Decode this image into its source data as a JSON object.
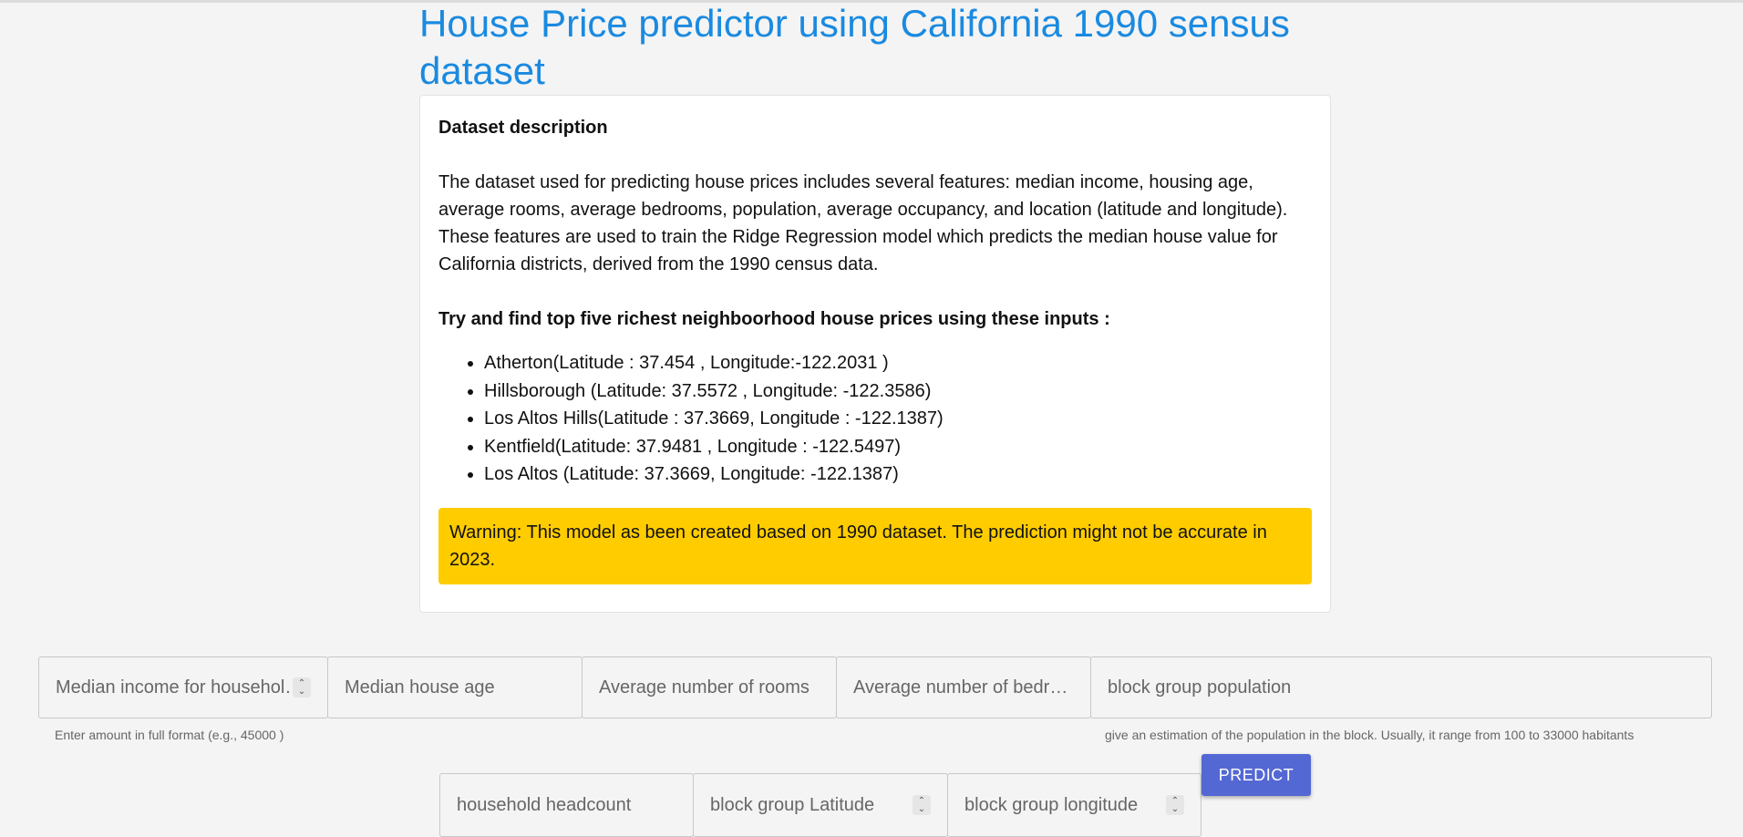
{
  "header": {
    "title": "House Price predictor using California 1990 sensus dataset"
  },
  "card": {
    "heading": "Dataset description",
    "description": "The dataset used for predicting house prices includes several features: median income, housing age, average rooms, average bedrooms, population, average occupancy, and location (latitude and longitude). These features are used to train the Ridge Regression model which predicts the median house value for California districts, derived from the 1990 census data.",
    "subheading": "Try and find top five richest neighboorhood house prices using these inputs :",
    "neighborhoods": [
      "Atherton(Latitude : 37.454 , Longitude:-122.2031 )",
      "Hillsborough (Latitude: 37.5572 , Longitude: -122.3586)",
      "Los Altos Hills(Latitude : 37.3669, Longitude : -122.1387)",
      "Kentfield(Latitude: 37.9481 , Longitude : -122.5497)",
      "Los Altos (Latitude: 37.3669, Longitude: -122.1387)"
    ],
    "warning": "Warning: This model as been created based on 1990 dataset. The prediction might not be accurate in 2023."
  },
  "form": {
    "median_income": {
      "placeholder": "Median income for households",
      "helper": "Enter amount in full format (e.g., 45000 )",
      "value": ""
    },
    "house_age": {
      "placeholder": "Median house age",
      "value": ""
    },
    "avg_rooms": {
      "placeholder": "Average number of rooms",
      "value": ""
    },
    "avg_bedrooms": {
      "placeholder": "Average number of bedr…",
      "value": ""
    },
    "population": {
      "placeholder": "block group population",
      "helper": "give an estimation of the population in the block. Usually, it range from 100 to 33000 habitants",
      "value": ""
    },
    "household_headcount": {
      "placeholder": "household headcount",
      "value": ""
    },
    "latitude": {
      "placeholder": "block group Latitude",
      "value": ""
    },
    "longitude": {
      "placeholder": "block group longitude",
      "value": ""
    },
    "predict_label": "PREDICT"
  },
  "colors": {
    "title": "#1a8ae0",
    "warning_bg": "#ffcc00",
    "button_bg": "#5468d4"
  },
  "icons": {
    "spinner": "up-down-chevron-icon"
  }
}
